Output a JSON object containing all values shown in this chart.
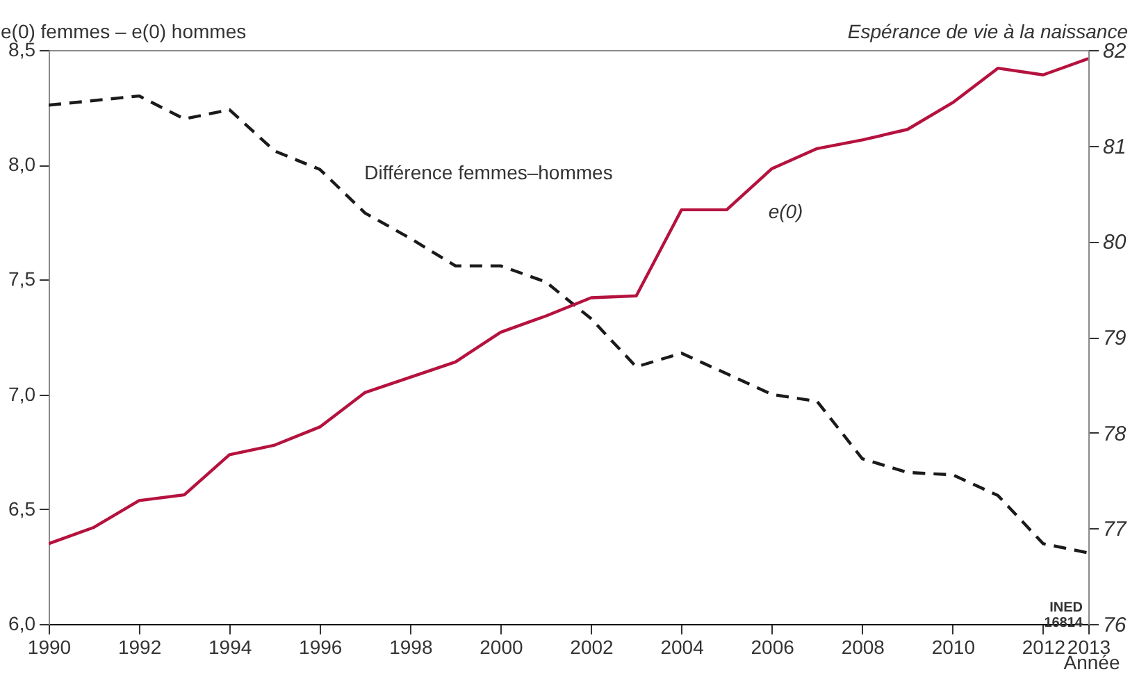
{
  "chart_data": {
    "type": "line",
    "xlabel": "Année",
    "ylabel": "e(0) femmes – e(0) hommes",
    "y2label": "Espérance de vie à la naissance",
    "x": [
      1990,
      1991,
      1992,
      1993,
      1994,
      1995,
      1996,
      1997,
      1998,
      1999,
      2000,
      2001,
      2002,
      2003,
      2004,
      2005,
      2006,
      2007,
      2008,
      2009,
      2010,
      2011,
      2012,
      2013
    ],
    "series": [
      {
        "name": "Différence femmes–hommes",
        "color": "#1a1a1a",
        "line_style": "dashed",
        "values": [
          8.26,
          8.28,
          8.3,
          8.2,
          8.24,
          8.06,
          7.98,
          7.79,
          7.68,
          7.56,
          7.56,
          7.49,
          7.33,
          7.12,
          7.18,
          7.09,
          7.0,
          6.97,
          6.72,
          6.66,
          6.65,
          6.56,
          6.35,
          6.31
        ]
      },
      {
        "name": "e(0)",
        "color": "#b5123e",
        "line_style": "solid",
        "axis": "y2",
        "values": [
          76.84,
          77.01,
          77.29,
          77.35,
          77.77,
          77.87,
          78.06,
          78.42,
          78.58,
          78.74,
          79.05,
          79.22,
          79.41,
          79.43,
          80.33,
          80.33,
          80.76,
          80.97,
          81.06,
          81.17,
          81.45,
          81.81,
          81.74,
          81.91
        ]
      }
    ],
    "xlim": [
      1990,
      2013
    ],
    "xticks": [
      1990,
      1992,
      1994,
      1996,
      1998,
      2000,
      2002,
      2004,
      2006,
      2008,
      2010,
      2012,
      2013
    ],
    "ylim": [
      6.0,
      8.5
    ],
    "yticks": [
      {
        "value": 6.0,
        "label": "6,0"
      },
      {
        "value": 6.5,
        "label": "6,5"
      },
      {
        "value": 7.0,
        "label": "7,0"
      },
      {
        "value": 7.5,
        "label": "7,5"
      },
      {
        "value": 8.0,
        "label": "8,0"
      },
      {
        "value": 8.5,
        "label": "8,5"
      }
    ],
    "y2lim": [
      76,
      82
    ],
    "y2ticks": [
      76,
      77,
      78,
      79,
      80,
      81,
      82
    ],
    "grid": false,
    "marker": "none",
    "annotations": [
      "INED\n16814"
    ]
  }
}
